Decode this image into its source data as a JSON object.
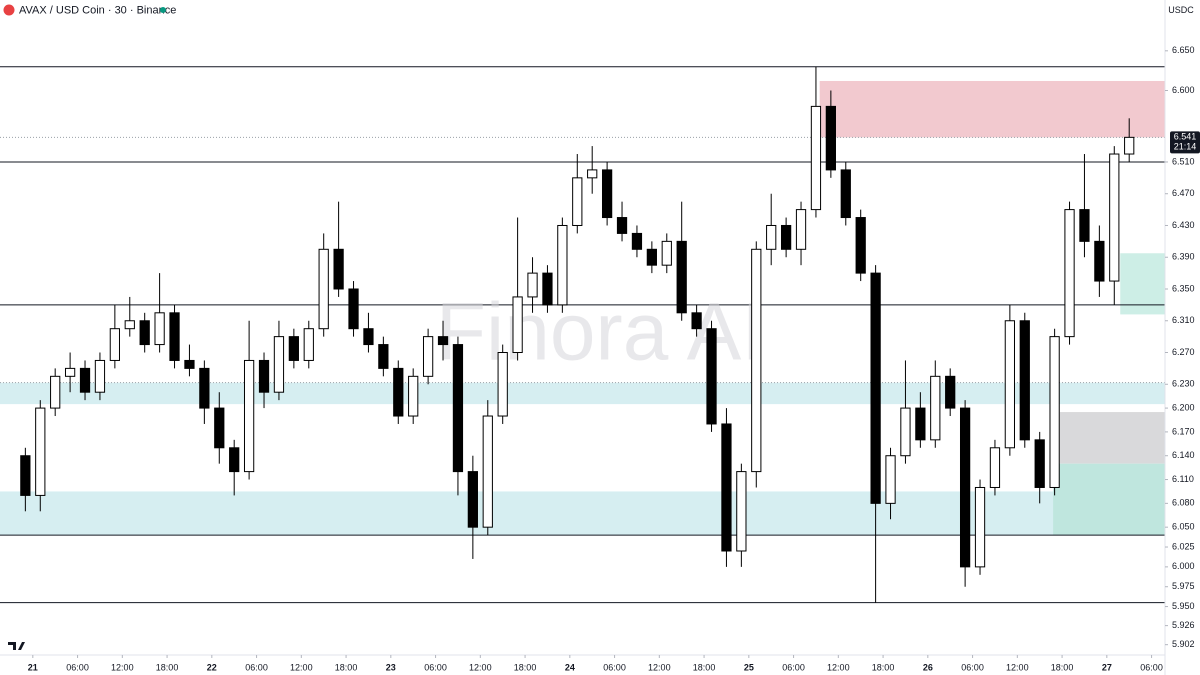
{
  "chart_data": {
    "type": "candlestick",
    "title": "AVAX / USD Coin · 30 · Binance",
    "currency": "USDC",
    "watermark": "Finora AI",
    "current_price": 6.541,
    "current_price_label": "6.541",
    "countdown": "21:14",
    "ylim": [
      5.889,
      6.714
    ],
    "yticks": [
      {
        "value": 6.65,
        "label": "6.650"
      },
      {
        "value": 6.6,
        "label": "6.600"
      },
      {
        "value": 6.51,
        "label": "6.510"
      },
      {
        "value": 6.47,
        "label": "6.470"
      },
      {
        "value": 6.43,
        "label": "6.430"
      },
      {
        "value": 6.39,
        "label": "6.390"
      },
      {
        "value": 6.35,
        "label": "6.350"
      },
      {
        "value": 6.31,
        "label": "6.310"
      },
      {
        "value": 6.27,
        "label": "6.270"
      },
      {
        "value": 6.23,
        "label": "6.230"
      },
      {
        "value": 6.2,
        "label": "6.200"
      },
      {
        "value": 6.17,
        "label": "6.170"
      },
      {
        "value": 6.14,
        "label": "6.140"
      },
      {
        "value": 6.11,
        "label": "6.110"
      },
      {
        "value": 6.08,
        "label": "6.080"
      },
      {
        "value": 6.05,
        "label": "6.050"
      },
      {
        "value": 6.025,
        "label": "6.025"
      },
      {
        "value": 6.0,
        "label": "6.000"
      },
      {
        "value": 5.975,
        "label": "5.975"
      },
      {
        "value": 5.95,
        "label": "5.950"
      },
      {
        "value": 5.926,
        "label": "5.926"
      },
      {
        "value": 5.902,
        "label": "5.902"
      }
    ],
    "xlim": [
      -4.4,
      151.8
    ],
    "xticks": [
      {
        "value": 0,
        "label": "21"
      },
      {
        "value": 6,
        "label": "06:00"
      },
      {
        "value": 12,
        "label": "12:00"
      },
      {
        "value": 18,
        "label": "18:00"
      },
      {
        "value": 24,
        "label": "22"
      },
      {
        "value": 30,
        "label": "06:00"
      },
      {
        "value": 36,
        "label": "12:00"
      },
      {
        "value": 42,
        "label": "18:00"
      },
      {
        "value": 48,
        "label": "23"
      },
      {
        "value": 54,
        "label": "06:00"
      },
      {
        "value": 60,
        "label": "12:00"
      },
      {
        "value": 66,
        "label": "18:00"
      },
      {
        "value": 72,
        "label": "24"
      },
      {
        "value": 78,
        "label": "06:00"
      },
      {
        "value": 84,
        "label": "12:00"
      },
      {
        "value": 90,
        "label": "18:00"
      },
      {
        "value": 96,
        "label": "25"
      },
      {
        "value": 102,
        "label": "06:00"
      },
      {
        "value": 108,
        "label": "12:00"
      },
      {
        "value": 114,
        "label": "18:00"
      },
      {
        "value": 120,
        "label": "26"
      },
      {
        "value": 126,
        "label": "06:00"
      },
      {
        "value": 132,
        "label": "12:00"
      },
      {
        "value": 138,
        "label": "18:00"
      },
      {
        "value": 144,
        "label": "27"
      },
      {
        "value": 150,
        "label": "06:00"
      }
    ],
    "up_color": "#ffffff",
    "down_color": "#000000",
    "x": [
      -2,
      0,
      2,
      4,
      6,
      8,
      10,
      12,
      14,
      16,
      18,
      20,
      22,
      24,
      26,
      28,
      30,
      32,
      34,
      36,
      38,
      40,
      42,
      44,
      46,
      48,
      50,
      52,
      54,
      56,
      58,
      60,
      62,
      64,
      66,
      68,
      70,
      72,
      74,
      76,
      78,
      80,
      82,
      84,
      86,
      88,
      90,
      92,
      94,
      96,
      98,
      100,
      102,
      104,
      106,
      108,
      110,
      112,
      114,
      116,
      118,
      120,
      122,
      124,
      126,
      128,
      130,
      132,
      134,
      136,
      138,
      140,
      142,
      144,
      146
    ],
    "open": [
      6.14,
      6.09,
      6.2,
      6.24,
      6.25,
      6.22,
      6.26,
      6.3,
      6.31,
      6.28,
      6.32,
      6.26,
      6.25,
      6.2,
      6.15,
      6.12,
      6.26,
      6.22,
      6.29,
      6.26,
      6.3,
      6.4,
      6.35,
      6.3,
      6.28,
      6.25,
      6.19,
      6.24,
      6.29,
      6.28,
      6.12,
      6.05,
      6.19,
      6.27,
      6.34,
      6.37,
      6.33,
      6.43,
      6.49,
      6.5,
      6.44,
      6.42,
      6.4,
      6.38,
      6.41,
      6.32,
      6.3,
      6.18,
      6.02,
      6.12,
      6.4,
      6.43,
      6.4,
      6.45,
      6.58,
      6.5,
      6.44,
      6.37,
      6.08,
      6.14,
      6.2,
      6.16,
      6.24,
      6.2,
      6.0,
      6.1,
      6.15,
      6.31,
      6.16,
      6.1,
      6.29,
      6.45,
      6.41,
      6.36,
      6.52
    ],
    "high": [
      6.15,
      6.21,
      6.25,
      6.27,
      6.26,
      6.27,
      6.33,
      6.34,
      6.32,
      6.37,
      6.33,
      6.28,
      6.26,
      6.22,
      6.16,
      6.31,
      6.27,
      6.31,
      6.3,
      6.31,
      6.42,
      6.46,
      6.36,
      6.32,
      6.29,
      6.26,
      6.25,
      6.3,
      6.31,
      6.29,
      6.14,
      6.21,
      6.28,
      6.44,
      6.39,
      6.38,
      6.44,
      6.52,
      6.53,
      6.51,
      6.46,
      6.43,
      6.41,
      6.42,
      6.46,
      6.33,
      6.31,
      6.2,
      6.13,
      6.41,
      6.47,
      6.44,
      6.46,
      6.63,
      6.6,
      6.51,
      6.45,
      6.38,
      6.15,
      6.26,
      6.22,
      6.26,
      6.25,
      6.21,
      6.11,
      6.16,
      6.33,
      6.32,
      6.17,
      6.3,
      6.46,
      6.52,
      6.43,
      6.53,
      6.565
    ],
    "low": [
      6.07,
      6.07,
      6.19,
      6.22,
      6.21,
      6.21,
      6.25,
      6.29,
      6.27,
      6.27,
      6.25,
      6.24,
      6.18,
      6.13,
      6.09,
      6.11,
      6.2,
      6.21,
      6.25,
      6.25,
      6.29,
      6.34,
      6.29,
      6.27,
      6.24,
      6.18,
      6.18,
      6.23,
      6.26,
      6.09,
      6.01,
      6.04,
      6.18,
      6.26,
      6.32,
      6.32,
      6.32,
      6.42,
      6.47,
      6.43,
      6.41,
      6.39,
      6.37,
      6.37,
      6.31,
      6.29,
      6.17,
      6.0,
      6.0,
      6.1,
      6.38,
      6.39,
      6.38,
      6.44,
      6.49,
      6.43,
      6.36,
      5.955,
      6.06,
      6.13,
      6.15,
      6.15,
      6.19,
      5.975,
      5.99,
      6.09,
      6.14,
      6.15,
      6.08,
      6.09,
      6.28,
      6.39,
      6.34,
      6.33,
      6.51
    ],
    "close": [
      6.09,
      6.2,
      6.24,
      6.25,
      6.22,
      6.26,
      6.3,
      6.31,
      6.28,
      6.32,
      6.26,
      6.25,
      6.2,
      6.15,
      6.12,
      6.26,
      6.22,
      6.29,
      6.26,
      6.3,
      6.4,
      6.35,
      6.3,
      6.28,
      6.25,
      6.19,
      6.24,
      6.29,
      6.28,
      6.12,
      6.05,
      6.19,
      6.27,
      6.34,
      6.37,
      6.33,
      6.43,
      6.49,
      6.5,
      6.44,
      6.42,
      6.4,
      6.38,
      6.41,
      6.32,
      6.3,
      6.18,
      6.02,
      6.12,
      6.4,
      6.43,
      6.4,
      6.45,
      6.58,
      6.5,
      6.44,
      6.37,
      6.08,
      6.14,
      6.2,
      6.16,
      6.24,
      6.2,
      6.0,
      6.1,
      6.15,
      6.31,
      6.16,
      6.1,
      6.29,
      6.45,
      6.41,
      6.36,
      6.52,
      6.541
    ],
    "levels": [
      6.63,
      6.51,
      6.33,
      6.04,
      5.955
    ],
    "dotted_levels": [
      6.232
    ],
    "zones": [
      {
        "from": 6.541,
        "to": 6.612,
        "x0": 105.5,
        "color": "#f2c9cf"
      },
      {
        "from": 6.205,
        "to": 6.232,
        "color": "#d6eef1"
      },
      {
        "from": 6.04,
        "to": 6.095,
        "color": "#d6eef1"
      },
      {
        "from": 6.318,
        "to": 6.395,
        "x0": 145.8,
        "color": "#cdeee6"
      },
      {
        "from": 6.13,
        "to": 6.195,
        "x0": 137.7,
        "color": "#d9d9db"
      },
      {
        "from": 6.04,
        "to": 6.13,
        "x0": 136.8,
        "color": "#bfe6de"
      }
    ]
  }
}
